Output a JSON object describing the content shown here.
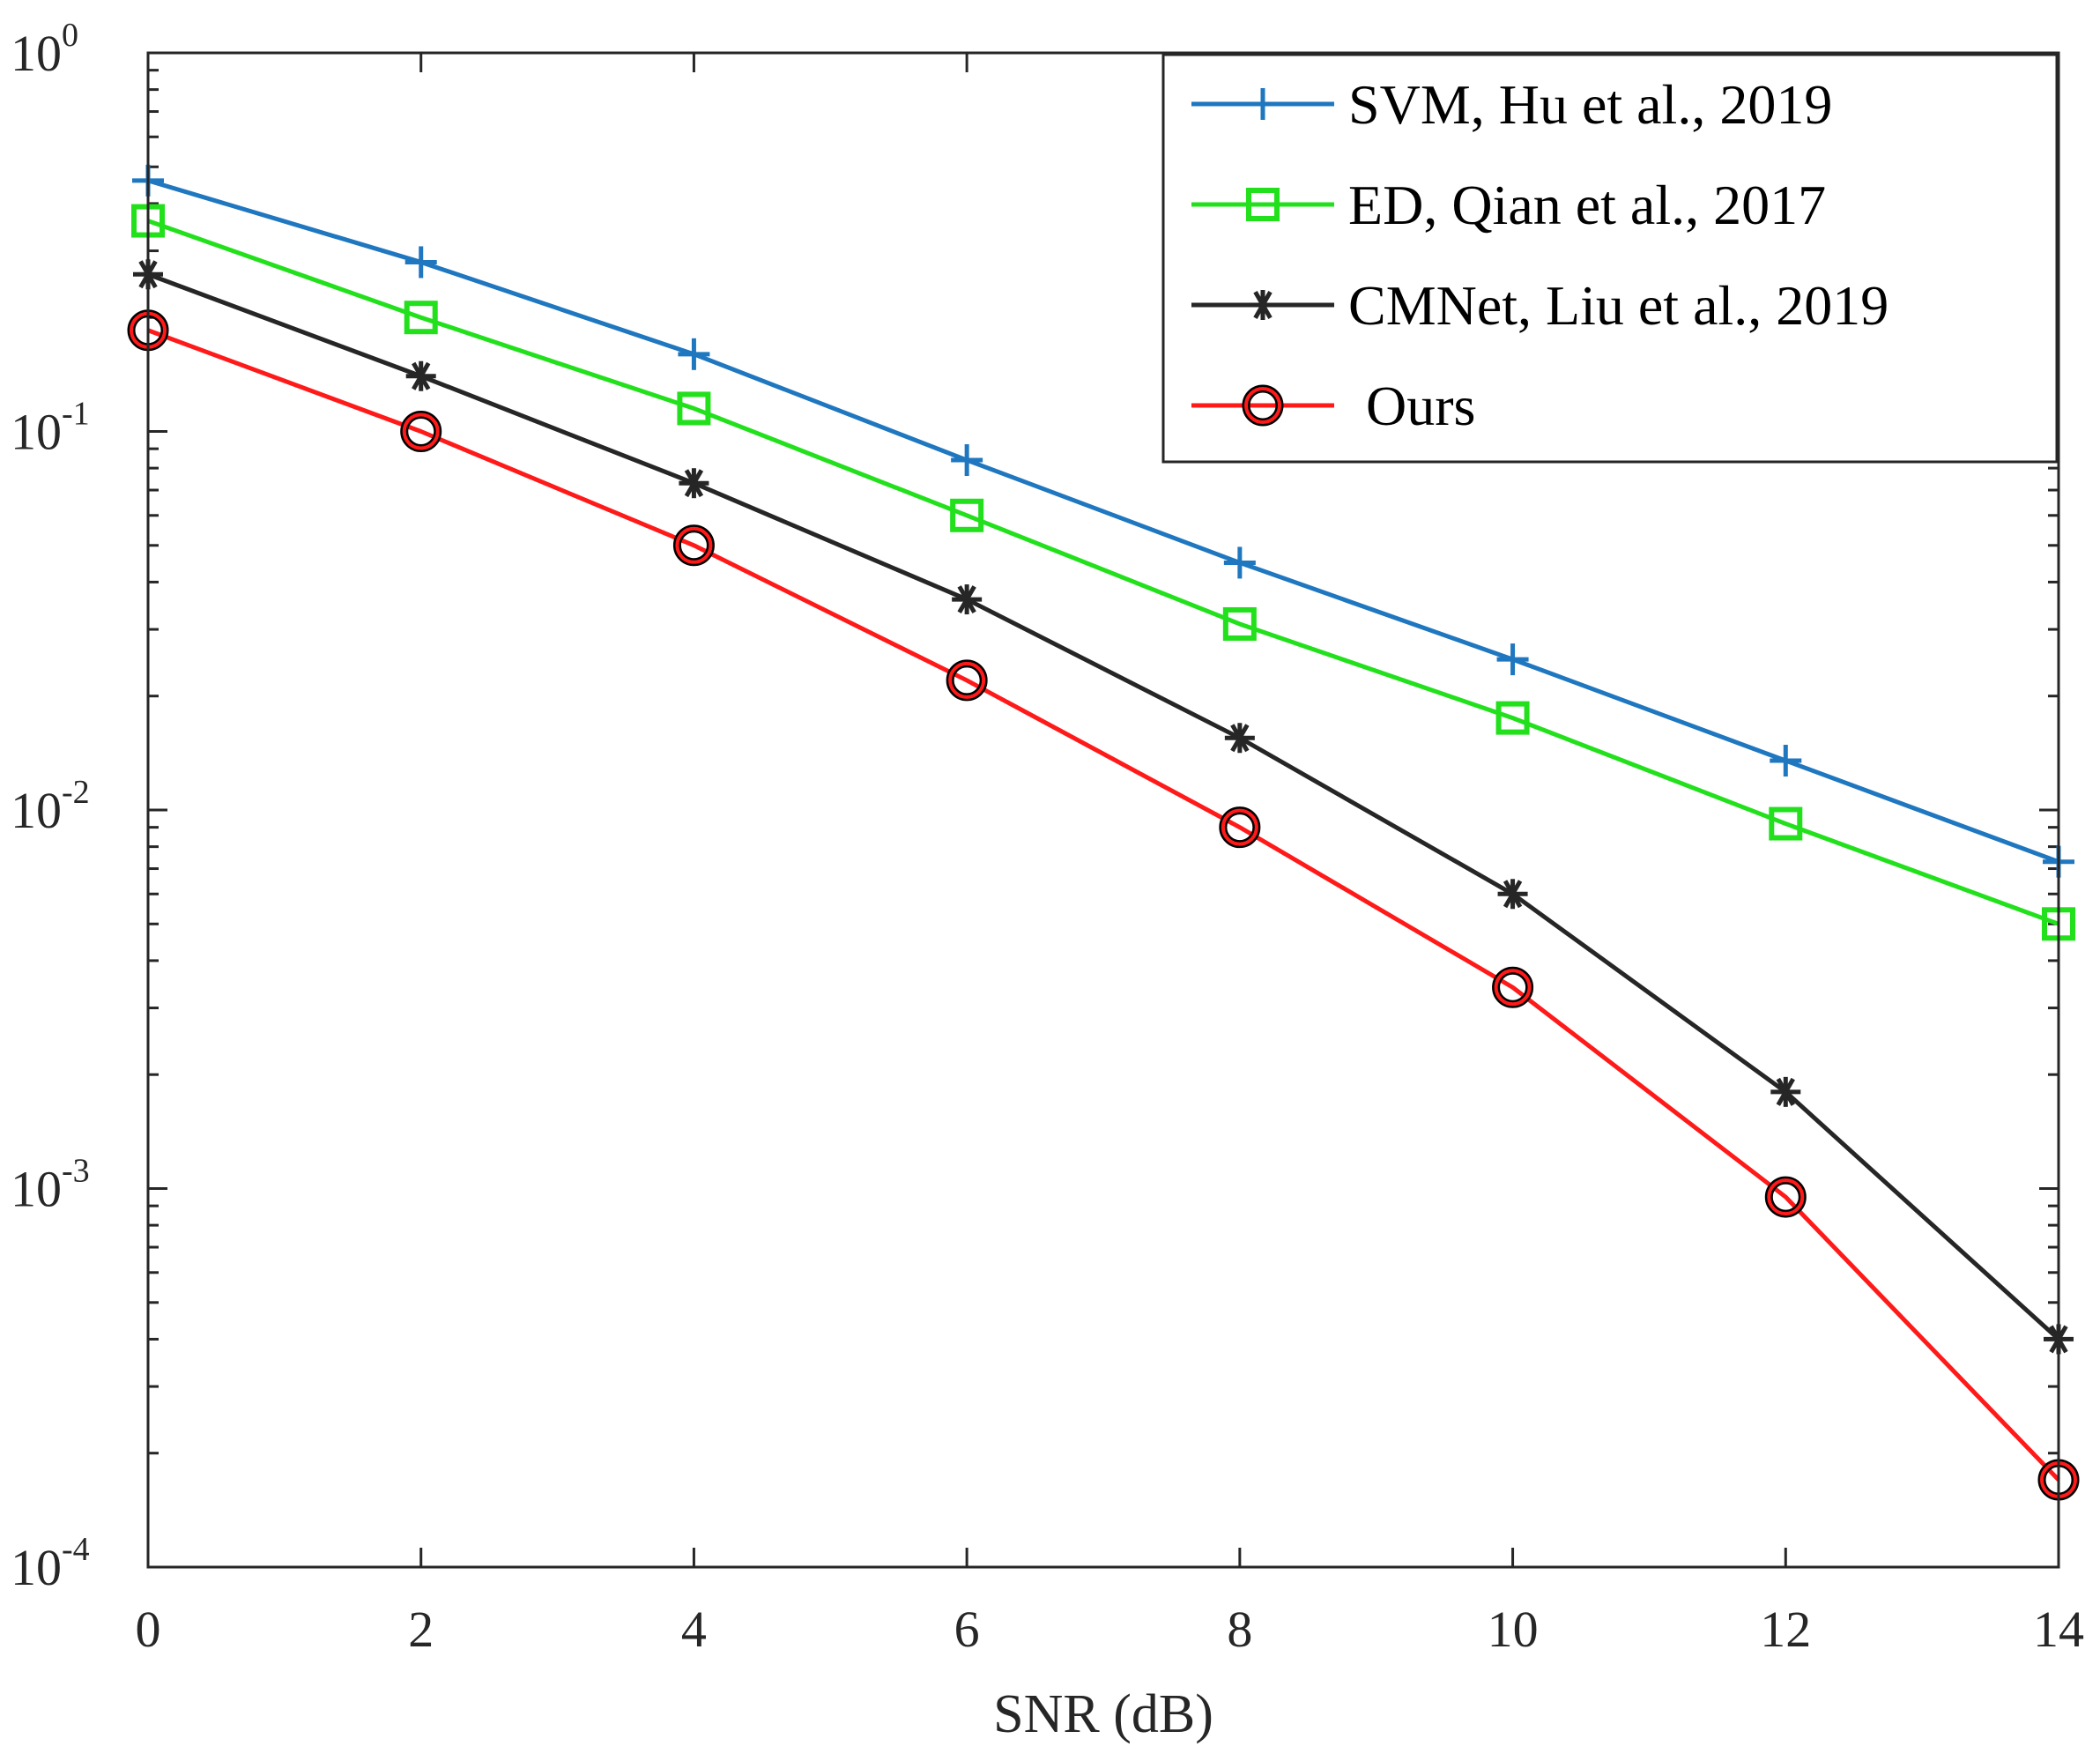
{
  "chart_data": {
    "type": "line",
    "title": "",
    "xlabel": "SNR (dB)",
    "ylabel": "",
    "yscale": "log",
    "xlim": [
      0,
      14
    ],
    "ylim": [
      0.0001,
      1
    ],
    "x": [
      0,
      2,
      4,
      6,
      8,
      10,
      12,
      14
    ],
    "x_tick_labels": [
      "0",
      "2",
      "4",
      "6",
      "8",
      "10",
      "12",
      "14"
    ],
    "y_ticks": [
      {
        "value": 1,
        "base": "10",
        "exp": "0"
      },
      {
        "value": 0.1,
        "base": "10",
        "exp": "-1"
      },
      {
        "value": 0.01,
        "base": "10",
        "exp": "-2"
      },
      {
        "value": 0.001,
        "base": "10",
        "exp": "-3"
      },
      {
        "value": 0.0001,
        "base": "10",
        "exp": "-4"
      }
    ],
    "legend_position": "top-right",
    "series": [
      {
        "name": "SVM, Hu et al., 2019",
        "color": "#1f77c0",
        "marker": "plus",
        "values": [
          0.46,
          0.28,
          0.16,
          0.084,
          0.045,
          0.025,
          0.0135,
          0.0073
        ]
      },
      {
        "name": "ED, Qian et al., 2017",
        "color": "#22e01c",
        "marker": "square",
        "values": [
          0.36,
          0.2,
          0.115,
          0.06,
          0.031,
          0.0175,
          0.0092,
          0.005
        ]
      },
      {
        "name": "CMNet, Liu et al., 2019",
        "color": "#262626",
        "marker": "asterisk",
        "values": [
          0.26,
          0.14,
          0.073,
          0.036,
          0.0155,
          0.006,
          0.0018,
          0.0004
        ]
      },
      {
        "name": "Ours",
        "color": "#ff1a1a",
        "marker": "circle",
        "values": [
          0.185,
          0.1,
          0.05,
          0.022,
          0.009,
          0.0034,
          0.00095,
          0.00017
        ]
      }
    ]
  }
}
